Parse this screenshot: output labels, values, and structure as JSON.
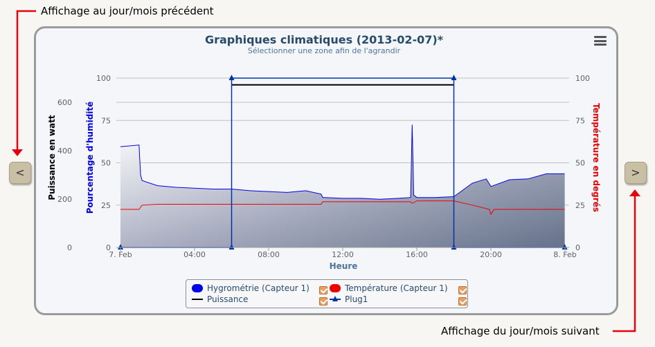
{
  "annotations": {
    "previous": "Affichage au jour/mois précédent",
    "next": "Affichage du jour/mois suivant"
  },
  "nav": {
    "prev_label": "<",
    "next_label": ">"
  },
  "menu": {
    "icon": "hamburger-menu-icon"
  },
  "colors": {
    "hygro": "#0000ee",
    "temp": "#ee0000",
    "power": "#000000",
    "plug": "#0033aa",
    "accent_red": "#e8000b"
  },
  "chart_data": {
    "type": "line",
    "title": "Graphiques climatiques (2013-02-07)*",
    "subtitle": "Sélectionner une zone afin de l'agrandir",
    "xlabel": "Heure",
    "x_ticks": [
      "7. Feb",
      "04:00",
      "08:00",
      "12:00",
      "16:00",
      "20:00",
      "8. Feb"
    ],
    "xlim": [
      "2013-02-07 00:00",
      "2013-02-08 00:00"
    ],
    "y_axes": [
      {
        "label": "Puissance en watt",
        "ticks": [
          "0",
          "200",
          "400",
          "600"
        ],
        "ylim": [
          0,
          700
        ]
      },
      {
        "label": "Pourcentage d'humidité",
        "ticks": [
          "0",
          "25",
          "50",
          "75",
          "100"
        ],
        "ylim": [
          0,
          100
        ]
      },
      {
        "label": "Température en degrés",
        "ticks": [
          "0",
          "25",
          "50",
          "75",
          "100"
        ],
        "ylim": [
          0,
          100
        ]
      }
    ],
    "grid": true,
    "legend_position": "bottom",
    "series": [
      {
        "name": "Hygrométrie (Capteur 1)",
        "axis": 1,
        "style": "area",
        "x": [
          "00:00",
          "01:00",
          "01:05",
          "01:10",
          "02:00",
          "03:00",
          "04:00",
          "05:00",
          "06:00",
          "07:00",
          "08:00",
          "09:00",
          "10:00",
          "10:50",
          "10:55",
          "11:00",
          "12:00",
          "13:00",
          "14:00",
          "15:00",
          "15:40",
          "15:45",
          "15:50",
          "16:00",
          "17:00",
          "18:00",
          "19:00",
          "19:45",
          "20:00",
          "21:00",
          "22:00",
          "23:00",
          "23:59"
        ],
        "y": [
          59.5,
          60.5,
          43,
          39.5,
          36.5,
          35.5,
          35,
          34.5,
          34.5,
          33.5,
          33,
          32.5,
          33.5,
          31.5,
          29.5,
          29.5,
          29,
          29,
          28.5,
          29,
          29.5,
          72.5,
          31,
          29.5,
          29.5,
          30,
          38,
          40.5,
          36,
          40,
          40.5,
          43.5,
          43.5
        ]
      },
      {
        "name": "Température (Capteur 1)",
        "axis": 2,
        "style": "line",
        "x": [
          "00:00",
          "01:00",
          "01:10",
          "02:00",
          "04:00",
          "06:00",
          "08:00",
          "10:00",
          "10:50",
          "10:55",
          "12:00",
          "14:00",
          "15:40",
          "15:45",
          "16:00",
          "17:00",
          "18:00",
          "19:00",
          "19:55",
          "20:00",
          "20:10",
          "21:00",
          "22:00",
          "23:00",
          "23:59"
        ],
        "y": [
          22.5,
          22.5,
          25,
          25.5,
          25.5,
          25.5,
          25.5,
          25.5,
          25.5,
          27,
          27,
          27,
          27,
          26,
          27.5,
          27.5,
          27.5,
          25,
          22.5,
          19.5,
          22.5,
          22.5,
          22.5,
          22.5,
          22.5
        ]
      },
      {
        "name": "Puissance",
        "axis": 0,
        "style": "line",
        "x": [
          "06:00",
          "18:00"
        ],
        "y": [
          672,
          672
        ]
      },
      {
        "name": "Plug1",
        "axis": 1,
        "style": "step-markers",
        "x": [
          "00:00",
          "06:00",
          "06:00",
          "18:00",
          "18:00",
          "23:59"
        ],
        "y": [
          0,
          0,
          100,
          100,
          0,
          0
        ]
      }
    ]
  }
}
